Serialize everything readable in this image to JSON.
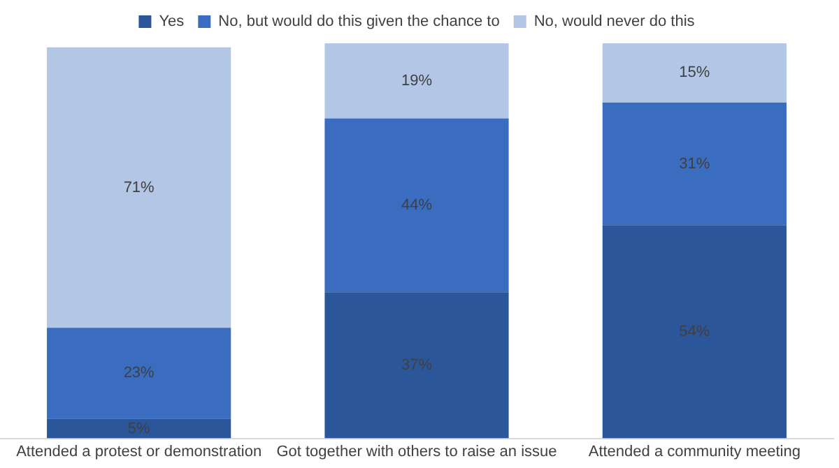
{
  "chart_data": {
    "type": "bar",
    "stacked": true,
    "categories": [
      "Attended a protest or demonstration",
      "Got together with others to raise an issue",
      "Attended a community meeting"
    ],
    "series": [
      {
        "name": "Yes",
        "color": "#2b5699",
        "values": [
          5,
          37,
          54
        ],
        "value_labels": [
          "5%",
          "37%",
          "54%"
        ]
      },
      {
        "name": "No, but would do this given the chance to",
        "color": "#3a6cc0",
        "values": [
          23,
          44,
          31
        ],
        "value_labels": [
          "23%",
          "44%",
          "31%"
        ]
      },
      {
        "name": "No, would never do this",
        "color": "#b4c6e6",
        "values": [
          71,
          19,
          15
        ],
        "value_labels": [
          "71%",
          "19%",
          "15%"
        ]
      }
    ],
    "tick_labels": "x",
    "legend": "top",
    "grid": false
  }
}
